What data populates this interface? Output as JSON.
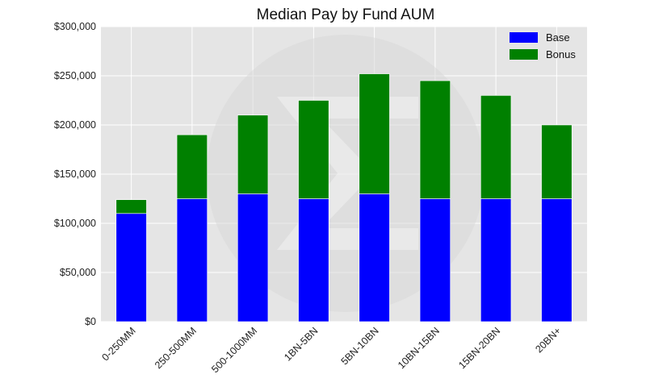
{
  "chart_data": {
    "type": "bar",
    "stacked": true,
    "title": "Median Pay by Fund AUM",
    "xlabel": "",
    "ylabel": "",
    "categories": [
      "0-250MM",
      "250-500MM",
      "500-1000MM",
      "1BN-5BN",
      "5BN-10BN",
      "10BN-15BN",
      "15BN-20BN",
      "20BN+"
    ],
    "series": [
      {
        "name": "Base",
        "color": "#0000ff",
        "values": [
          110000,
          125000,
          130000,
          125000,
          130000,
          125000,
          125000,
          125000
        ]
      },
      {
        "name": "Bonus",
        "color": "#008000",
        "values": [
          14000,
          65000,
          80000,
          100000,
          122000,
          120000,
          105000,
          75000
        ]
      }
    ],
    "ylim": [
      0,
      300000
    ],
    "yticks": [
      0,
      50000,
      100000,
      150000,
      200000,
      250000,
      300000
    ],
    "ytick_labels": [
      "$0",
      "$50,000",
      "$100,000",
      "$150,000",
      "$200,000",
      "$250,000",
      "$300,000"
    ],
    "grid": true,
    "legend_position": "top-right",
    "watermark": "sigma-logo"
  }
}
